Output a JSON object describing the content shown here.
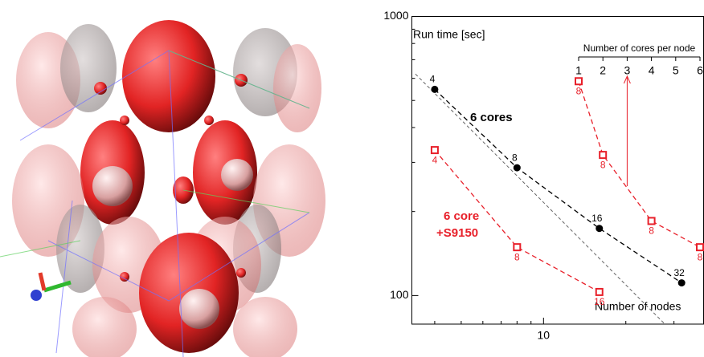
{
  "chart_data": {
    "type": "line",
    "log_x": true,
    "log_y": true,
    "xlabel": "Number of nodes",
    "ylabel": "Run time [sec]",
    "xlim": [
      3.3,
      38.5
    ],
    "ylim": [
      79,
      1000
    ],
    "xticks": [
      10
    ],
    "yticks": [
      100,
      1000
    ],
    "xminor": [
      4,
      5,
      6,
      7,
      8,
      9,
      20,
      30
    ],
    "yminor": [
      200,
      300,
      400,
      500,
      600,
      700,
      800,
      900
    ],
    "x2label": "Number of cores per node",
    "x2lim": [
      1,
      6
    ],
    "x2ticks": [
      1,
      2,
      3,
      4,
      5,
      6
    ],
    "reference": {
      "color": "#666666",
      "x": [
        3.4,
        27.8
      ],
      "values": [
        622,
        79
      ]
    },
    "series": [
      {
        "name": "6 cores",
        "color": "#000000",
        "marker": "circle",
        "x": [
          4,
          8,
          16,
          32
        ],
        "values": [
          548,
          287,
          174,
          111
        ]
      },
      {
        "name_lines": [
          "6 core",
          "+S9150"
        ],
        "color": "#e8202a",
        "marker": "square",
        "x": [
          4,
          8,
          16
        ],
        "values": [
          332,
          149,
          103
        ]
      },
      {
        "color": "#e8202a",
        "marker": "square",
        "axis": "x2",
        "x": [
          1,
          2,
          4,
          6
        ],
        "nodes": [
          8,
          8,
          8,
          8
        ],
        "values": [
          586,
          319,
          185,
          149
        ]
      }
    ]
  }
}
